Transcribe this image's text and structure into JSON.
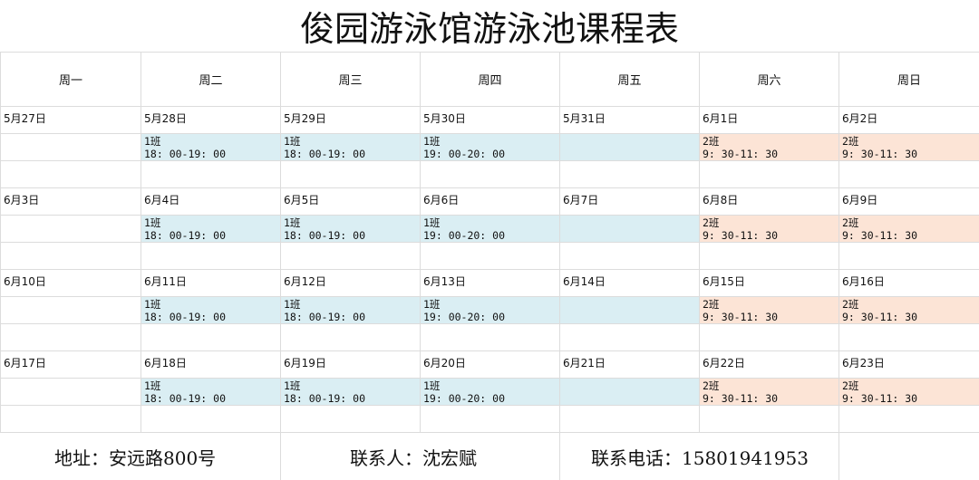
{
  "title": "俊园游泳馆游泳池课程表",
  "days": [
    "周一",
    "周二",
    "周三",
    "周四",
    "周五",
    "周六",
    "周日"
  ],
  "colors": {
    "class1_bg": "#daeef3",
    "class2_bg": "#fce4d6",
    "grid_line": "#dcdcdc"
  },
  "weeks": [
    {
      "dates": [
        "5月27日",
        "5月28日",
        "5月29日",
        "5月30日",
        "5月31日",
        "6月1日",
        "6月2日"
      ],
      "classes": [
        null,
        {
          "name": "1班",
          "time": "18: 00-19: 00",
          "color": "blue"
        },
        {
          "name": "1班",
          "time": "18: 00-19: 00",
          "color": "blue"
        },
        {
          "name": "1班",
          "time": "19: 00-20: 00",
          "color": "blue"
        },
        {
          "name": "",
          "time": "",
          "color": "blue"
        },
        {
          "name": "2班",
          "time": "9: 30-11: 30",
          "color": "peach"
        },
        {
          "name": "2班",
          "time": "9: 30-11: 30",
          "color": "peach"
        }
      ]
    },
    {
      "dates": [
        "6月3日",
        "6月4日",
        "6月5日",
        "6月6日",
        "6月7日",
        "6月8日",
        "6月9日"
      ],
      "classes": [
        null,
        {
          "name": "1班",
          "time": "18: 00-19: 00",
          "color": "blue"
        },
        {
          "name": "1班",
          "time": "18: 00-19: 00",
          "color": "blue"
        },
        {
          "name": "1班",
          "time": "19: 00-20: 00",
          "color": "blue"
        },
        {
          "name": "",
          "time": "",
          "color": "blue"
        },
        {
          "name": "2班",
          "time": "9: 30-11: 30",
          "color": "peach"
        },
        {
          "name": "2班",
          "time": "9: 30-11: 30",
          "color": "peach"
        }
      ]
    },
    {
      "dates": [
        "6月10日",
        "6月11日",
        "6月12日",
        "6月13日",
        "6月14日",
        "6月15日",
        "6月16日"
      ],
      "classes": [
        null,
        {
          "name": "1班",
          "time": "18: 00-19: 00",
          "color": "blue"
        },
        {
          "name": "1班",
          "time": "18: 00-19: 00",
          "color": "blue"
        },
        {
          "name": "1班",
          "time": "19: 00-20: 00",
          "color": "blue"
        },
        {
          "name": "",
          "time": "",
          "color": "blue"
        },
        {
          "name": "2班",
          "time": "9: 30-11: 30",
          "color": "peach"
        },
        {
          "name": "2班",
          "time": "9: 30-11: 30",
          "color": "peach"
        }
      ]
    },
    {
      "dates": [
        "6月17日",
        "6月18日",
        "6月19日",
        "6月20日",
        "6月21日",
        "6月22日",
        "6月23日"
      ],
      "classes": [
        null,
        {
          "name": "1班",
          "time": "18: 00-19: 00",
          "color": "blue"
        },
        {
          "name": "1班",
          "time": "18: 00-19: 00",
          "color": "blue"
        },
        {
          "name": "1班",
          "time": "19: 00-20: 00",
          "color": "blue"
        },
        {
          "name": "",
          "time": "",
          "color": "blue"
        },
        {
          "name": "2班",
          "time": "9: 30-11: 30",
          "color": "peach"
        },
        {
          "name": "2班",
          "time": "9: 30-11: 30",
          "color": "peach"
        }
      ]
    }
  ],
  "footer": {
    "address": "地址：安远路800号",
    "contact": "联系人：沈宏赋",
    "phone": "联系电话：15801941953"
  }
}
